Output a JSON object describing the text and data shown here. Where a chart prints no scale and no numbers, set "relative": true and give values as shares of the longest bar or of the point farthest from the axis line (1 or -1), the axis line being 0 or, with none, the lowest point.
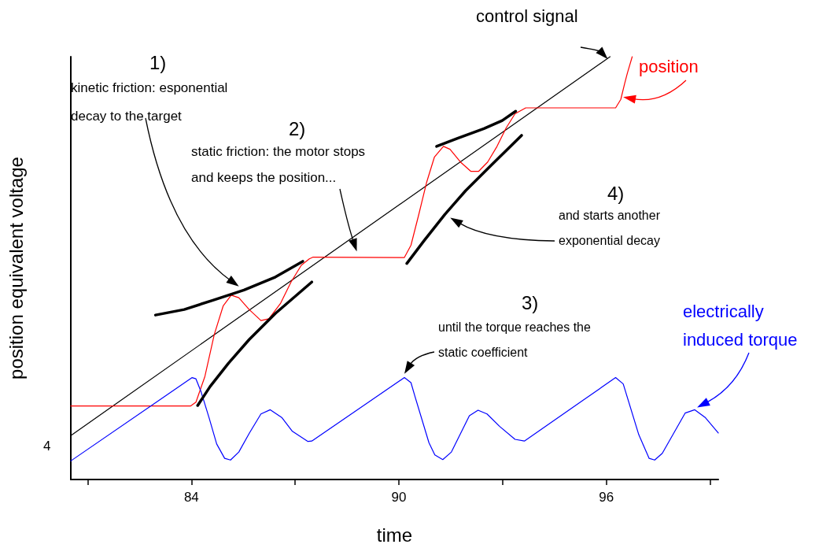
{
  "chart_data": {
    "type": "line",
    "xlabel": "time",
    "ylabel": "position equivalent voltage",
    "relative": true,
    "xlim": [
      80.51,
      99.24
    ],
    "xticks": [
      {
        "value": 81,
        "label": null
      },
      84,
      {
        "value": 87,
        "label": null
      },
      90,
      {
        "value": 93,
        "label": null
      },
      96,
      {
        "value": 99,
        "label": null
      }
    ],
    "marker": "none",
    "line_style": "solid",
    "grid": false,
    "legend": false,
    "series": [
      {
        "name": "control signal",
        "color": "#000000",
        "x": [
          80.51,
          96.11
        ],
        "values": [
          0.104,
          1.0
        ]
      },
      {
        "name": "position",
        "color": "#ff0000",
        "x": [
          80.51,
          83.98,
          84.13,
          84.39,
          84.66,
          84.92,
          85.15,
          85.37,
          85.67,
          86.01,
          86.24,
          86.58,
          86.88,
          87.18,
          87.41,
          87.52,
          90.16,
          90.35,
          90.58,
          90.8,
          91.03,
          91.29,
          91.48,
          91.78,
          92.08,
          92.31,
          92.57,
          92.84,
          93.1,
          93.36,
          93.67,
          96.27,
          96.42,
          96.53,
          96.61,
          96.75
        ],
        "values": [
          0.174,
          0.174,
          0.183,
          0.244,
          0.343,
          0.411,
          0.436,
          0.43,
          0.402,
          0.376,
          0.38,
          0.417,
          0.467,
          0.507,
          0.522,
          0.526,
          0.525,
          0.554,
          0.628,
          0.702,
          0.763,
          0.788,
          0.781,
          0.751,
          0.729,
          0.729,
          0.751,
          0.788,
          0.831,
          0.865,
          0.879,
          0.879,
          0.899,
          0.936,
          0.961,
          1.0
        ]
      },
      {
        "name": "electrically induced torque",
        "color": "#0000ff",
        "x": [
          80.51,
          84.02,
          84.13,
          84.28,
          84.51,
          84.73,
          84.96,
          85.13,
          85.37,
          85.67,
          86.01,
          86.28,
          86.62,
          86.92,
          87.37,
          87.48,
          90.16,
          90.35,
          90.46,
          90.87,
          91.04,
          91.27,
          91.52,
          92.04,
          92.29,
          92.55,
          92.91,
          93.36,
          93.63,
          96.27,
          96.49,
          96.94,
          97.24,
          97.4,
          97.62,
          98.28,
          98.56,
          98.87,
          99.24
        ],
        "values": [
          0.044,
          0.241,
          0.238,
          0.207,
          0.146,
          0.084,
          0.05,
          0.046,
          0.065,
          0.109,
          0.155,
          0.165,
          0.146,
          0.114,
          0.09,
          0.091,
          0.241,
          0.229,
          0.198,
          0.087,
          0.058,
          0.047,
          0.065,
          0.151,
          0.164,
          0.155,
          0.126,
          0.095,
          0.091,
          0.241,
          0.226,
          0.106,
          0.05,
          0.046,
          0.062,
          0.157,
          0.165,
          0.146,
          0.11
        ]
      },
      {
        "color": "#000000",
        "x": [
          82.96,
          83.79,
          84.62,
          85.52,
          86.43,
          87.22
        ],
        "values": [
          0.389,
          0.402,
          0.424,
          0.448,
          0.479,
          0.516
        ]
      },
      {
        "color": "#000000",
        "x": [
          84.18,
          84.54,
          85.07,
          85.67,
          86.43,
          87.48
        ],
        "values": [
          0.175,
          0.22,
          0.275,
          0.331,
          0.393,
          0.467
        ]
      },
      {
        "color": "#000000",
        "x": [
          91.09,
          91.7,
          92.46,
          92.99,
          93.38
        ],
        "values": [
          0.788,
          0.807,
          0.83,
          0.849,
          0.871
        ]
      },
      {
        "color": "#000000",
        "x": [
          90.23,
          90.73,
          91.33,
          91.93,
          92.68,
          93.55
        ],
        "values": [
          0.511,
          0.565,
          0.627,
          0.683,
          0.744,
          0.814
        ]
      }
    ],
    "annotations": [
      "1)",
      "kinetic friction: esponential decay to the target",
      "2)",
      "static friction: the motor stops and keeps the position...",
      "3)",
      {
        "text": "until the torque reaches the static coefficient",
        "x": 90.16,
        "y": 0.25
      },
      "4)",
      "and starts another exponential decay",
      "4"
    ]
  }
}
